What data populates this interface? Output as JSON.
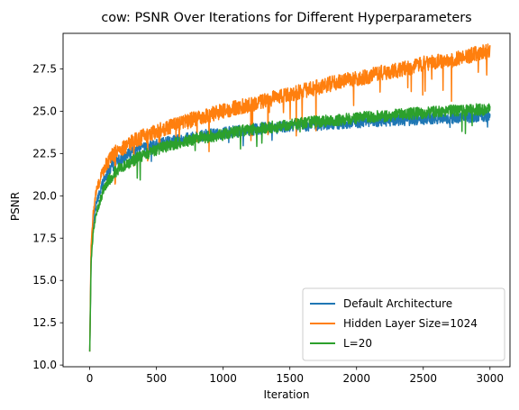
{
  "chart_data": {
    "type": "line",
    "title": "cow: PSNR Over Iterations for Different Hyperparameters",
    "xlabel": "Iteration",
    "ylabel": "PSNR",
    "xlim": [
      -200,
      3150
    ],
    "ylim": [
      9.9,
      29.6
    ],
    "xticks": [
      0,
      500,
      1000,
      1500,
      2000,
      2500,
      3000
    ],
    "xtick_labels": [
      "0",
      "500",
      "1000",
      "1500",
      "2000",
      "2500",
      "3000"
    ],
    "yticks": [
      10.0,
      12.5,
      15.0,
      17.5,
      20.0,
      22.5,
      25.0,
      27.5
    ],
    "ytick_labels": [
      "10.0",
      "12.5",
      "15.0",
      "17.5",
      "20.0",
      "22.5",
      "25.0",
      "27.5"
    ],
    "grid": false,
    "legend_position": "lower-right",
    "x": [
      0,
      10,
      25,
      50,
      100,
      150,
      200,
      300,
      400,
      500,
      600,
      700,
      800,
      900,
      1000,
      1100,
      1200,
      1300,
      1400,
      1500,
      1600,
      1700,
      1800,
      1900,
      2000,
      2100,
      2200,
      2300,
      2400,
      2500,
      2600,
      2700,
      2800,
      2900,
      3000
    ],
    "series": [
      {
        "name": "Default Architecture",
        "color": "#1f77b4",
        "values": [
          10.8,
          16.5,
          18.3,
          19.6,
          20.8,
          21.6,
          22.0,
          22.5,
          22.8,
          23.0,
          23.2,
          23.3,
          23.5,
          23.6,
          23.7,
          23.8,
          23.9,
          24.0,
          24.0,
          24.1,
          24.15,
          24.2,
          24.25,
          24.3,
          24.35,
          24.4,
          24.45,
          24.5,
          24.5,
          24.55,
          24.6,
          24.6,
          24.65,
          24.7,
          24.7
        ]
      },
      {
        "name": "Hidden Layer Size=1024",
        "color": "#ff7f0e",
        "values": [
          10.8,
          17.0,
          18.9,
          20.3,
          21.5,
          22.2,
          22.6,
          23.1,
          23.5,
          23.8,
          24.1,
          24.3,
          24.6,
          24.8,
          25.0,
          25.2,
          25.4,
          25.6,
          25.8,
          26.0,
          26.2,
          26.4,
          26.6,
          26.8,
          26.9,
          27.1,
          27.3,
          27.4,
          27.6,
          27.8,
          27.9,
          28.0,
          28.2,
          28.4,
          28.6
        ]
      },
      {
        "name": "L=20",
        "color": "#2ca02c",
        "values": [
          10.8,
          16.0,
          17.8,
          19.0,
          20.3,
          21.0,
          21.5,
          22.0,
          22.4,
          22.7,
          23.0,
          23.2,
          23.4,
          23.5,
          23.6,
          23.8,
          23.9,
          24.0,
          24.1,
          24.2,
          24.3,
          24.4,
          24.45,
          24.5,
          24.6,
          24.65,
          24.7,
          24.8,
          24.85,
          24.9,
          24.95,
          25.0,
          25.05,
          25.1,
          25.1
        ]
      }
    ]
  }
}
